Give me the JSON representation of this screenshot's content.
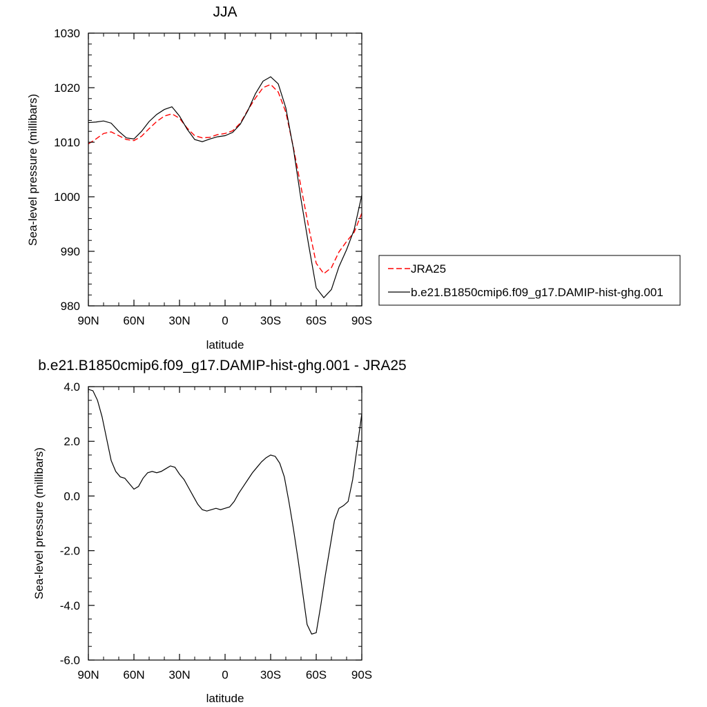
{
  "chart_data": [
    {
      "type": "line",
      "title": "JJA",
      "xlabel": "latitude",
      "ylabel": "Sea-level pressure (millibars)",
      "xlim": [
        90,
        -90
      ],
      "ylim": [
        980,
        1030
      ],
      "xticks": [
        90,
        60,
        30,
        0,
        -30,
        -60,
        -90
      ],
      "xtick_labels": [
        "90N",
        "60N",
        "30N",
        "0",
        "30S",
        "60S",
        "90S"
      ],
      "yticks": [
        980,
        990,
        1000,
        1010,
        1020,
        1030
      ],
      "ytick_labels": [
        "980",
        "990",
        "1000",
        "1010",
        "1020",
        "1030"
      ],
      "grid": false,
      "legend": "right",
      "series": [
        {
          "name": "JRA25",
          "color": "#ff0000",
          "dash": "dashed",
          "x": [
            90,
            85,
            80,
            75,
            70,
            65,
            60,
            55,
            50,
            45,
            40,
            35,
            30,
            25,
            20,
            15,
            10,
            5,
            0,
            -5,
            -10,
            -15,
            -20,
            -25,
            -30,
            -35,
            -40,
            -45,
            -50,
            -55,
            -60,
            -65,
            -70,
            -75,
            -80,
            -85,
            -90
          ],
          "y": [
            1009.7,
            1010.6,
            1011.6,
            1011.9,
            1011.2,
            1010.5,
            1010.3,
            1011.1,
            1012.5,
            1013.8,
            1014.8,
            1015.2,
            1014.4,
            1012.6,
            1011.2,
            1010.8,
            1010.9,
            1011.4,
            1011.6,
            1012.1,
            1013.5,
            1015.9,
            1018.1,
            1020.0,
            1020.6,
            1019.2,
            1015.5,
            1009.0,
            1001.8,
            994.5,
            987.8,
            985.9,
            987.0,
            989.9,
            991.8,
            993.5,
            997.0
          ]
        },
        {
          "name": "b.e21.B1850cmip6.f09_g17.DAMIP-hist-ghg.001",
          "color": "#000000",
          "dash": "solid",
          "x": [
            90,
            85,
            80,
            75,
            70,
            65,
            60,
            55,
            50,
            45,
            40,
            35,
            30,
            25,
            20,
            15,
            10,
            5,
            0,
            -5,
            -10,
            -15,
            -20,
            -25,
            -30,
            -35,
            -40,
            -45,
            -50,
            -55,
            -60,
            -65,
            -70,
            -75,
            -80,
            -85,
            -90
          ],
          "y": [
            1013.6,
            1013.7,
            1013.9,
            1013.5,
            1012.0,
            1010.8,
            1010.6,
            1012.0,
            1013.8,
            1015.1,
            1016.0,
            1016.5,
            1014.8,
            1012.4,
            1010.5,
            1010.1,
            1010.6,
            1011.0,
            1011.2,
            1011.8,
            1013.3,
            1015.8,
            1018.9,
            1021.2,
            1022.0,
            1020.7,
            1016.3,
            1008.8,
            999.5,
            991.2,
            983.3,
            981.5,
            983.0,
            987.2,
            990.3,
            994.0,
            1000.3
          ]
        }
      ]
    },
    {
      "type": "line",
      "title": "b.e21.B1850cmip6.f09_g17.DAMIP-hist-ghg.001 - JRA25",
      "xlabel": "latitude",
      "ylabel": "Sea-level pressure (millibars)",
      "xlim": [
        90,
        -90
      ],
      "ylim": [
        -6.0,
        4.0
      ],
      "xticks": [
        90,
        60,
        30,
        0,
        -30,
        -60,
        -90
      ],
      "xtick_labels": [
        "90N",
        "60N",
        "30N",
        "0",
        "30S",
        "60S",
        "90S"
      ],
      "yticks": [
        -6,
        -4,
        -2,
        0,
        2,
        4
      ],
      "ytick_labels": [
        "-6.0",
        "-4.0",
        "-2.0",
        "0.0",
        "2.0",
        "4.0"
      ],
      "grid": false,
      "series": [
        {
          "color": "#000000",
          "dash": "solid",
          "x": [
            90,
            87,
            84,
            81,
            78,
            75,
            72,
            69,
            66,
            63,
            60,
            57,
            54,
            51,
            48,
            45,
            42,
            39,
            36,
            33,
            30,
            27,
            24,
            21,
            18,
            15,
            12,
            9,
            6,
            3,
            0,
            -3,
            -6,
            -9,
            -12,
            -15,
            -18,
            -21,
            -24,
            -27,
            -30,
            -33,
            -36,
            -39,
            -42,
            -45,
            -48,
            -51,
            -54,
            -57,
            -60,
            -63,
            -66,
            -69,
            -72,
            -75,
            -78,
            -81,
            -84,
            -87,
            -90
          ],
          "y": [
            3.9,
            3.85,
            3.5,
            2.9,
            2.1,
            1.3,
            0.9,
            0.7,
            0.65,
            0.45,
            0.25,
            0.35,
            0.65,
            0.85,
            0.9,
            0.85,
            0.9,
            1.0,
            1.1,
            1.05,
            0.8,
            0.6,
            0.3,
            0.0,
            -0.3,
            -0.5,
            -0.55,
            -0.5,
            -0.45,
            -0.5,
            -0.45,
            -0.4,
            -0.2,
            0.1,
            0.35,
            0.6,
            0.85,
            1.05,
            1.25,
            1.4,
            1.5,
            1.45,
            1.2,
            0.7,
            -0.2,
            -1.2,
            -2.3,
            -3.5,
            -4.7,
            -5.05,
            -5.0,
            -4.0,
            -2.9,
            -1.9,
            -0.9,
            -0.45,
            -0.35,
            -0.2,
            0.6,
            1.8,
            3.0
          ]
        }
      ]
    }
  ]
}
